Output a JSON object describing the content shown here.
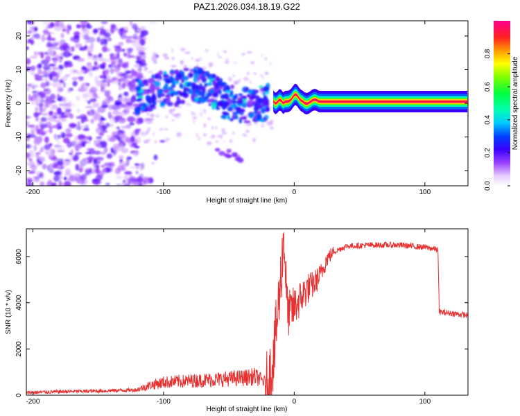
{
  "figure": {
    "title": "PAZ1.2026.034.18.19.G22"
  },
  "chart_data": [
    {
      "type": "heatmap",
      "title": "PAZ1.2026.034.18.19.G22",
      "xlabel": "Height of straight line (km)",
      "ylabel": "Frequency (Hz)",
      "xlim": [
        -205,
        133
      ],
      "ylim": [
        -24.5,
        24.5
      ],
      "x_ticks": [
        -200,
        -100,
        0,
        100
      ],
      "y_ticks": [
        -20,
        -10,
        0,
        10,
        20
      ],
      "colorbar": {
        "label": "Normalized spectral amplitude",
        "range": [
          0,
          1
        ],
        "ticks": [
          "0.0",
          "0.2",
          "0.4",
          "0.6",
          "0.8"
        ]
      },
      "regions": [
        {
          "x_range": [
            -205,
            -115
          ],
          "freq_spread": 24,
          "amplitude": 0.12,
          "description": "diffuse noise"
        },
        {
          "x_range": [
            -120,
            -25
          ],
          "freq_center": 2,
          "freq_spread": 6,
          "amplitude": 0.35,
          "description": "multipath cluster"
        },
        {
          "x_range": [
            -60,
            -40
          ],
          "freq_center": -15,
          "amplitude": 0.1,
          "description": "faint branch"
        },
        {
          "x_range": [
            -15,
            133
          ],
          "freq_center": 0.5,
          "amplitude": 0.95,
          "description": "single ray line"
        }
      ]
    },
    {
      "type": "line",
      "xlabel": "Height of straight line (km)",
      "ylabel": "SNR (10 * v/v)",
      "xlim": [
        -205,
        133
      ],
      "ylim": [
        0,
        7200
      ],
      "x_ticks": [
        -200,
        -100,
        0,
        100
      ],
      "y_ticks": [
        0,
        2000,
        4000,
        6000
      ],
      "series": [
        {
          "name": "SNR",
          "color": "#e83030",
          "x": [
            -205,
            -180,
            -150,
            -120,
            -110,
            -100,
            -80,
            -60,
            -40,
            -30,
            -20,
            -15,
            -10,
            -8,
            -5,
            0,
            5,
            10,
            15,
            20,
            25,
            30,
            40,
            60,
            80,
            100,
            110,
            111,
            120,
            133
          ],
          "y": [
            80,
            120,
            150,
            200,
            350,
            450,
            500,
            550,
            600,
            650,
            400,
            2000,
            5200,
            6900,
            3500,
            3800,
            4200,
            4600,
            4800,
            5200,
            5900,
            6200,
            6450,
            6500,
            6500,
            6400,
            6300,
            3600,
            3550,
            3450
          ]
        }
      ]
    }
  ]
}
